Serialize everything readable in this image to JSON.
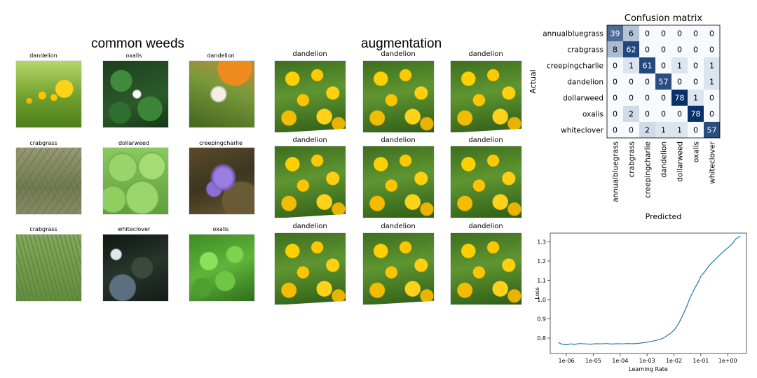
{
  "sections": {
    "weeds_title": "common weeds",
    "augmentation_title": "augmentation"
  },
  "weed_grid": [
    {
      "label": "dandelion",
      "icon": "dandelion-photo"
    },
    {
      "label": "oxalis",
      "icon": "oxalis-photo"
    },
    {
      "label": "dandelion",
      "icon": "dandelion-seedhead-photo"
    },
    {
      "label": "crabgrass",
      "icon": "crabgrass-photo"
    },
    {
      "label": "dollarweed",
      "icon": "dollarweed-photo"
    },
    {
      "label": "creepingcharlie",
      "icon": "creepingcharlie-photo"
    },
    {
      "label": "crabgrass",
      "icon": "crabgrass-photo"
    },
    {
      "label": "whiteclover",
      "icon": "whiteclover-photo"
    },
    {
      "label": "oxalis",
      "icon": "oxalis-photo"
    }
  ],
  "augmentation_grid": [
    {
      "label": "dandelion"
    },
    {
      "label": "dandelion"
    },
    {
      "label": "dandelion"
    },
    {
      "label": "dandelion"
    },
    {
      "label": "dandelion"
    },
    {
      "label": "dandelion"
    },
    {
      "label": "dandelion"
    },
    {
      "label": "dandelion"
    },
    {
      "label": "dandelion"
    }
  ],
  "chart_data": [
    {
      "type": "heatmap",
      "title": "Confusion matrix",
      "xlabel": "Predicted",
      "ylabel": "Actual",
      "classes": [
        "annualbluegrass",
        "crabgrass",
        "creepingcharlie",
        "dandelion",
        "dollarweed",
        "oxalis",
        "whiteclover"
      ],
      "matrix": [
        [
          39,
          6,
          0,
          0,
          0,
          0,
          0
        ],
        [
          8,
          62,
          0,
          0,
          0,
          0,
          0
        ],
        [
          0,
          1,
          61,
          0,
          1,
          0,
          1
        ],
        [
          0,
          0,
          0,
          57,
          0,
          0,
          1
        ],
        [
          0,
          0,
          0,
          0,
          78,
          1,
          0
        ],
        [
          0,
          2,
          0,
          0,
          0,
          78,
          0
        ],
        [
          0,
          0,
          2,
          1,
          1,
          0,
          57
        ]
      ],
      "colormap": {
        "low": "#f7fbff",
        "high": "#08306b"
      }
    },
    {
      "type": "line",
      "title": "",
      "xlabel": "Learning Rate",
      "ylabel": "Loss",
      "xscale": "log",
      "xlim": [
        2.5e-07,
        5
      ],
      "ylim": [
        0.72,
        1.345
      ],
      "xticks": [
        1e-06,
        1e-05,
        0.0001,
        0.001,
        0.01,
        0.1,
        1
      ],
      "xtick_labels": [
        "1e-06",
        "1e-05",
        "1e-04",
        "1e-03",
        "1e-02",
        "1e-01",
        "1e+00"
      ],
      "yticks": [
        0.8,
        0.9,
        1.0,
        1.1,
        1.2,
        1.3
      ],
      "ytick_labels": [
        "0.8",
        "0.9",
        "1.0",
        "1.1",
        "1.2",
        "1.3"
      ],
      "color": "#1f77b4",
      "series": [
        {
          "x": [
            5e-07,
            7e-07,
            1e-06,
            1.5e-06,
            2e-06,
            3e-06,
            5e-06,
            8e-06,
            1.2e-05,
            2e-05,
            3e-05,
            5e-05,
            8e-05,
            0.00012,
            0.0002,
            0.0003,
            0.0005,
            0.0008,
            0.001,
            0.0015,
            0.002,
            0.003,
            0.004,
            0.005,
            0.007,
            0.01,
            0.015,
            0.02,
            0.03,
            0.04,
            0.06,
            0.08,
            0.1,
            0.15,
            0.2,
            0.3,
            0.5,
            0.7,
            1,
            1.5,
            2,
            3
          ],
          "y": [
            0.777,
            0.768,
            0.765,
            0.77,
            0.767,
            0.772,
            0.77,
            0.768,
            0.771,
            0.77,
            0.772,
            0.769,
            0.771,
            0.77,
            0.772,
            0.771,
            0.773,
            0.777,
            0.779,
            0.783,
            0.787,
            0.793,
            0.8,
            0.808,
            0.822,
            0.84,
            0.875,
            0.91,
            0.965,
            1.01,
            1.06,
            1.09,
            1.12,
            1.15,
            1.175,
            1.2,
            1.23,
            1.25,
            1.268,
            1.29,
            1.315,
            1.33
          ]
        }
      ]
    }
  ]
}
